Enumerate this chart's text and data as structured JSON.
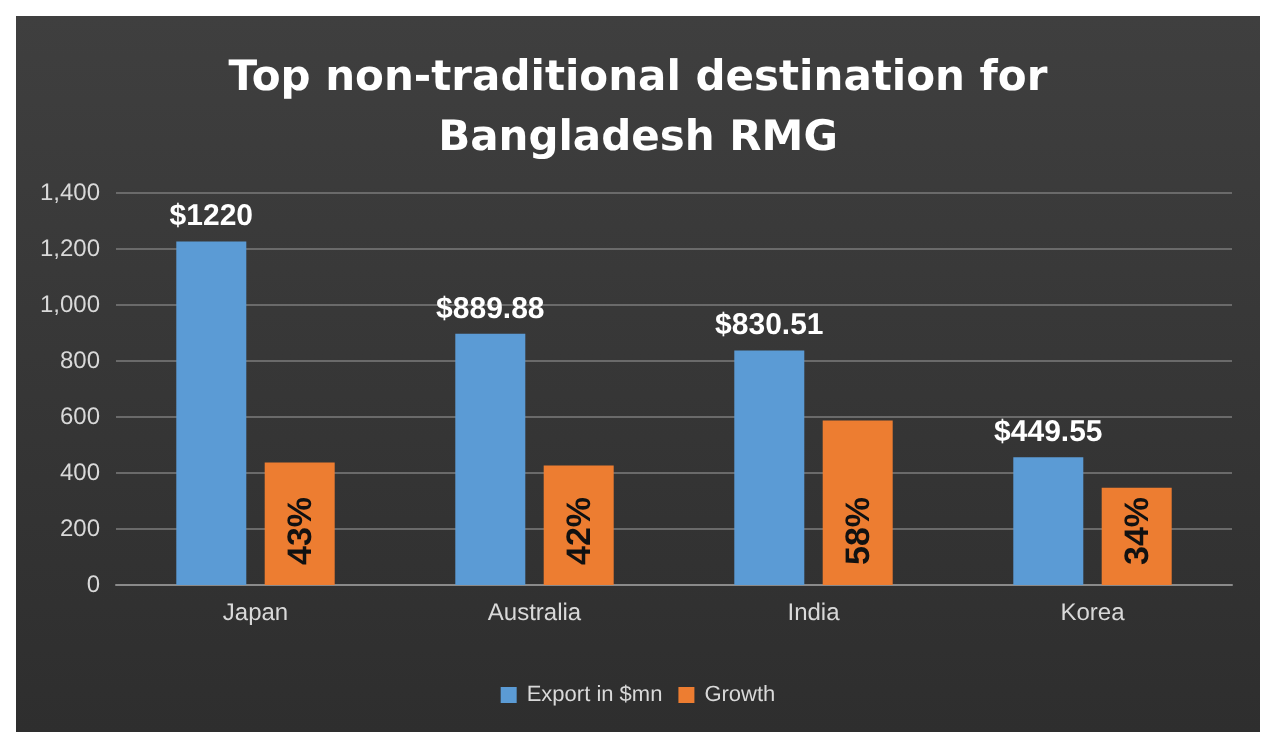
{
  "chart_data": {
    "type": "bar",
    "title": "Top non-traditional destination for\nBangladesh RMG",
    "categories": [
      "Japan",
      "Australia",
      "India",
      "Korea"
    ],
    "series": [
      {
        "name": "Export in $mn",
        "color": "#5b9bd5",
        "values": [
          1220,
          889.88,
          830.51,
          449.55
        ],
        "value_labels": [
          "$1220",
          "$889.88",
          "$830.51",
          "$449.55"
        ]
      },
      {
        "name": "Growth",
        "color": "#ed7d31",
        "axis": "y2",
        "values": [
          43,
          42,
          58,
          34
        ],
        "value_labels": [
          "43%",
          "42%",
          "58%",
          "34%"
        ]
      }
    ],
    "ylim": [
      0,
      1400
    ],
    "yticks": [
      0,
      200,
      400,
      600,
      800,
      {
        "value": 1000,
        "label": "1,000"
      },
      {
        "value": 1200,
        "label": "1,200"
      },
      {
        "value": 1400,
        "label": "1,400"
      }
    ],
    "y2lim": [
      0,
      140
    ],
    "grid": "y",
    "legend": "bottom"
  }
}
